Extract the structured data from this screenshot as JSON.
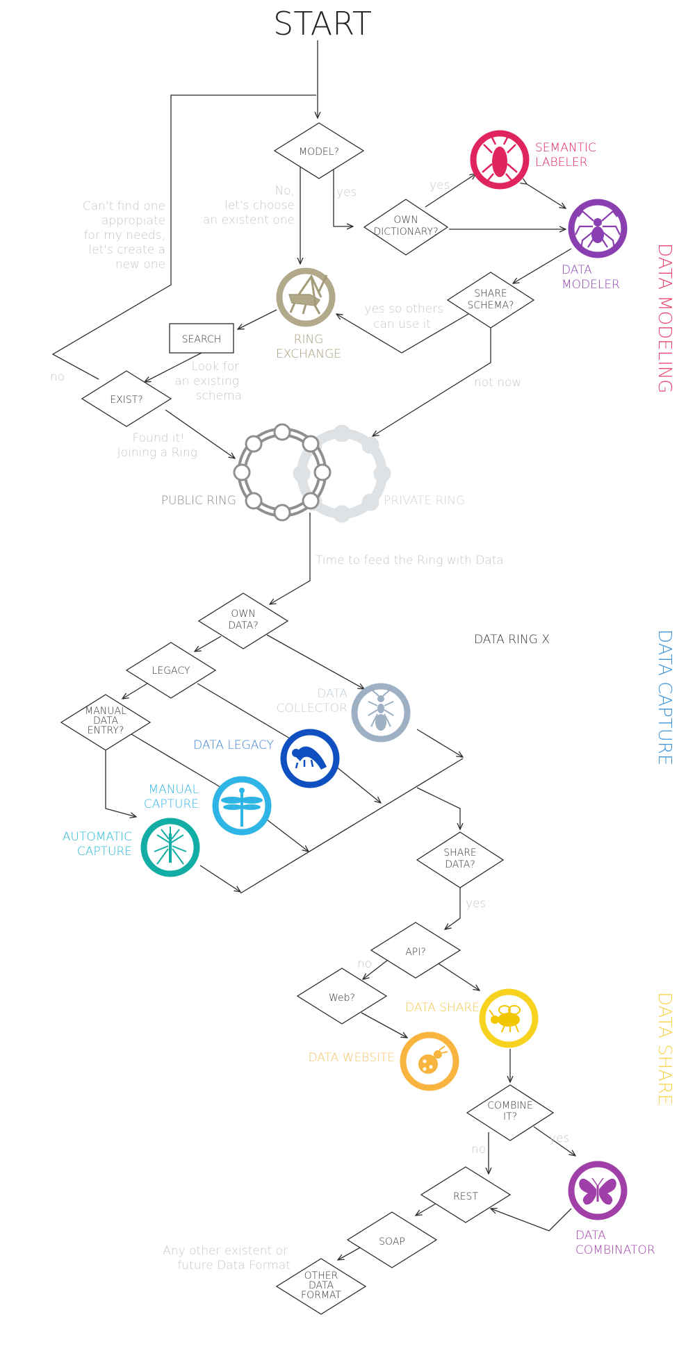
{
  "title": "START",
  "decisions": {
    "model": "MODEL?",
    "own_dictionary": [
      "OWN",
      "DICTIONARY?"
    ],
    "share_schema": [
      "SHARE",
      "SCHEMA?"
    ],
    "exist": "EXIST?",
    "own_data": [
      "OWN",
      "DATA?"
    ],
    "legacy": "LEGACY",
    "manual_data_entry": [
      "MANUAL",
      "DATA",
      "ENTRY?"
    ],
    "share_data": [
      "SHARE",
      "DATA?"
    ],
    "api": "API?",
    "web": "Web?",
    "combine": [
      "COMBINE",
      "IT?"
    ],
    "rest": "REST",
    "soap": "SOAP",
    "other_format": [
      "OTHER",
      "DATA",
      "FORMAT"
    ]
  },
  "search_box": "SEARCH",
  "notes": {
    "yes1": "yes",
    "yes2": "yes",
    "no_choose": [
      "No,",
      "let's choose",
      "an existent one"
    ],
    "cant_find": [
      "Can't find one",
      "appropiate",
      "for my needs,",
      "let's create a",
      "new one"
    ],
    "yes_so_others": [
      "yes so others",
      "can use it"
    ],
    "look_for": [
      "Look for",
      "an existing",
      "schema"
    ],
    "no_exist": "no",
    "not_now": "not now",
    "found_it": [
      "Found it!",
      "Joining a Ring"
    ],
    "feed_ring": "Time to feed the Ring with Data",
    "yes_share": "yes",
    "no_api": "no",
    "no_combine": "no",
    "yes_combine": "yes",
    "any_other": [
      "Any other existent or",
      "future Data Format"
    ]
  },
  "roles": {
    "semantic_labeler": [
      "SEMANTIC",
      "LABELER"
    ],
    "data_modeler": [
      "DATA",
      "MODELER"
    ],
    "ring_exchange": [
      "RING",
      "EXCHANGE"
    ],
    "data_collector": [
      "DATA",
      "COLLECTOR"
    ],
    "data_legacy": "DATA LEGACY",
    "manual_capture": [
      "MANUAL",
      "CAPTURE"
    ],
    "automatic_capture": [
      "AUTOMATIC",
      "CAPTURE"
    ],
    "data_share": "DATA SHARE",
    "data_website": "DATA WEBSITE",
    "data_combinator": [
      "DATA",
      "COMBINATOR"
    ]
  },
  "rings": {
    "public": "PUBLIC RING",
    "private": "PRIVATE RING"
  },
  "data_ring_label": "DATA RING X",
  "sections": {
    "modeling": "DATA MODELING",
    "capture": "DATA CAPTURE",
    "share": "DATA SHARE"
  },
  "colors": {
    "line": "#2b2b2b",
    "note_gray": "#c6c6c6",
    "semantic_labeler": "#e0245e",
    "data_modeler": "#8a3fb0",
    "ring_exchange": "#b2a98a",
    "data_collector": "#9db0c4",
    "data_legacy": "#0f4fbf",
    "manual_capture": "#2fb4e6",
    "automatic_capture": "#12aea6",
    "data_share": "#f7d21e",
    "data_website": "#f7b540",
    "data_combinator": "#9f3fa7",
    "section_modeling": "#e9456f",
    "section_capture": "#3d95dc",
    "section_share": "#f7d44e",
    "public_ring": "#8f8f8f",
    "private_ring": "#dfe2e5"
  },
  "icons": {
    "semantic_labeler": "cicada-icon",
    "data_modeler": "spider-icon",
    "ring_exchange": "grasshopper-icon",
    "data_collector": "ant-icon",
    "data_legacy": "caterpillar-icon",
    "manual_capture": "dragonfly-icon",
    "automatic_capture": "mosquito-icon",
    "data_share": "bee-icon",
    "data_website": "ladybug-icon",
    "data_combinator": "butterfly-icon"
  }
}
